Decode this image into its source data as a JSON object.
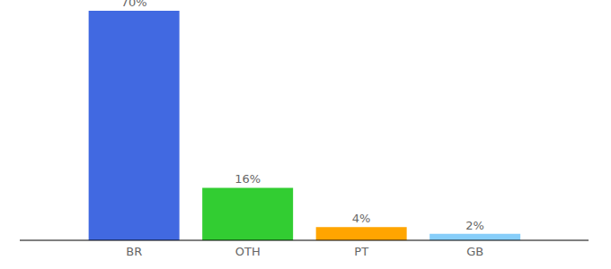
{
  "chart_data": {
    "type": "bar",
    "categories": [
      "BR",
      "OTH",
      "PT",
      "GB"
    ],
    "values": [
      70,
      16,
      4,
      2
    ],
    "value_labels": [
      "70%",
      "16%",
      "4%",
      "2%"
    ],
    "colors": [
      "#4169e1",
      "#32cd32",
      "#ffa500",
      "#87cefa"
    ],
    "data_labels": true,
    "tick_labels": "x"
  }
}
